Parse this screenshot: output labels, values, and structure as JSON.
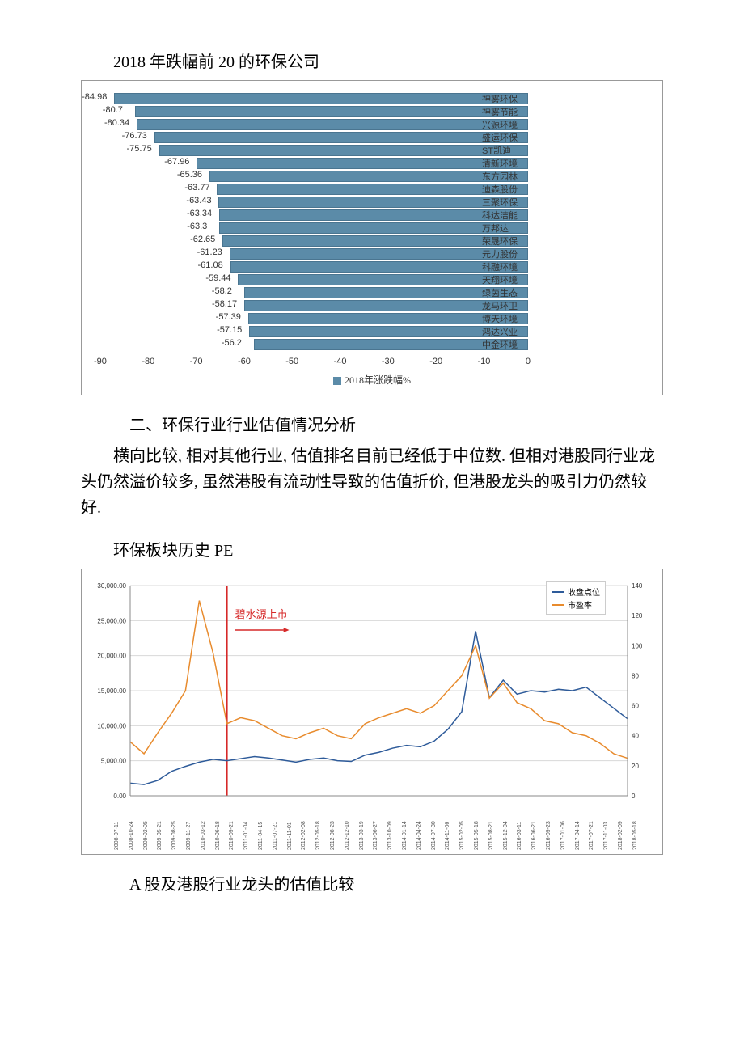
{
  "titles": {
    "chart1_title": "2018 年跌幅前 20 的环保公司",
    "section2_title": "二、环保行业行业估值情况分析",
    "body_para": "横向比较, 相对其他行业, 估值排名目前已经低于中位数. 但相对港股同行业龙头仍然溢价较多, 虽然港股有流动性导致的估值折价, 但港股龙头的吸引力仍然较好.",
    "chart2_title": "环保板块历史 PE",
    "chart3_title": "A 股及港股行业龙头的估值比较"
  },
  "bar_chart": {
    "legend_label": "2018年涨跌幅%",
    "bar_color": "#5b8ba8",
    "x_min": -90,
    "x_max": 0,
    "x_ticks": [
      "-90",
      "-80",
      "-70",
      "-60",
      "-50",
      "-40",
      "-30",
      "-20",
      "-10",
      "0"
    ],
    "bars": [
      {
        "label": "神雾环保",
        "value": -84.98
      },
      {
        "label": "神雾节能",
        "value": -80.7
      },
      {
        "label": "兴源环境",
        "value": -80.34
      },
      {
        "label": "盛运环保",
        "value": -76.73
      },
      {
        "label": "ST凯迪",
        "value": -75.75
      },
      {
        "label": "清新环境",
        "value": -67.96
      },
      {
        "label": "东方园林",
        "value": -65.36
      },
      {
        "label": "迪森股份",
        "value": -63.77
      },
      {
        "label": "三聚环保",
        "value": -63.43
      },
      {
        "label": "科达洁能",
        "value": -63.34
      },
      {
        "label": "万邦达",
        "value": -63.3
      },
      {
        "label": "荣晟环保",
        "value": -62.65
      },
      {
        "label": "元力股份",
        "value": -61.23
      },
      {
        "label": "科融环境",
        "value": -61.08
      },
      {
        "label": "天翔环境",
        "value": -59.44
      },
      {
        "label": "绿茵生态",
        "value": -58.2
      },
      {
        "label": "龙马环卫",
        "value": -58.17
      },
      {
        "label": "博天环境",
        "value": -57.39
      },
      {
        "label": "鸿达兴业",
        "value": -57.15
      },
      {
        "label": "中金环境",
        "value": -56.2
      }
    ]
  },
  "line_chart": {
    "legend": {
      "series1": "收盘点位",
      "series2": "市盈率"
    },
    "series1_color": "#2e5b9a",
    "series2_color": "#e88b2d",
    "vline_color": "#d62828",
    "annotation_text": "碧水源上市",
    "y_left_max": 30000,
    "y_left_ticks": [
      "0.00",
      "5,000.00",
      "10,000.00",
      "15,000.00",
      "20,000.00",
      "25,000.00",
      "30,000.00"
    ],
    "y_right_max": 140,
    "y_right_ticks": [
      "0",
      "20",
      "40",
      "60",
      "80",
      "100",
      "120",
      "140"
    ],
    "x_labels": [
      "2008-07-11",
      "2008-10-24",
      "2009-02-05",
      "2009-05-21",
      "2009-08-25",
      "2009-11-27",
      "2010-03-12",
      "2010-06-18",
      "2010-09-21",
      "2011-01-04",
      "2011-04-15",
      "2011-07-21",
      "2011-11-01",
      "2012-02-08",
      "2012-05-18",
      "2012-08-23",
      "2012-12-10",
      "2013-03-19",
      "2013-06-27",
      "2013-10-09",
      "2014-01-14",
      "2014-04-24",
      "2014-07-30",
      "2014-11-06",
      "2015-02-05",
      "2015-05-18",
      "2015-08-21",
      "2015-12-04",
      "2016-03-11",
      "2016-06-21",
      "2016-09-23",
      "2017-01-06",
      "2017-04-14",
      "2017-07-21",
      "2017-11-03",
      "2018-02-09",
      "2018-05-18"
    ],
    "series1": [
      1800,
      1600,
      2200,
      3500,
      4200,
      4800,
      5200,
      5000,
      5300,
      5600,
      5400,
      5100,
      4800,
      5200,
      5400,
      5000,
      4900,
      5800,
      6200,
      6800,
      7200,
      7000,
      7800,
      9500,
      12000,
      23500,
      14000,
      16500,
      14500,
      15000,
      14800,
      15200,
      15000,
      15500,
      14000,
      12500,
      11000
    ],
    "series2": [
      36,
      28,
      42,
      55,
      70,
      130,
      95,
      48,
      52,
      50,
      45,
      40,
      38,
      42,
      45,
      40,
      38,
      48,
      52,
      55,
      58,
      55,
      60,
      70,
      80,
      100,
      65,
      75,
      62,
      58,
      50,
      48,
      42,
      40,
      35,
      28,
      25
    ],
    "vline_x_index": 7
  }
}
